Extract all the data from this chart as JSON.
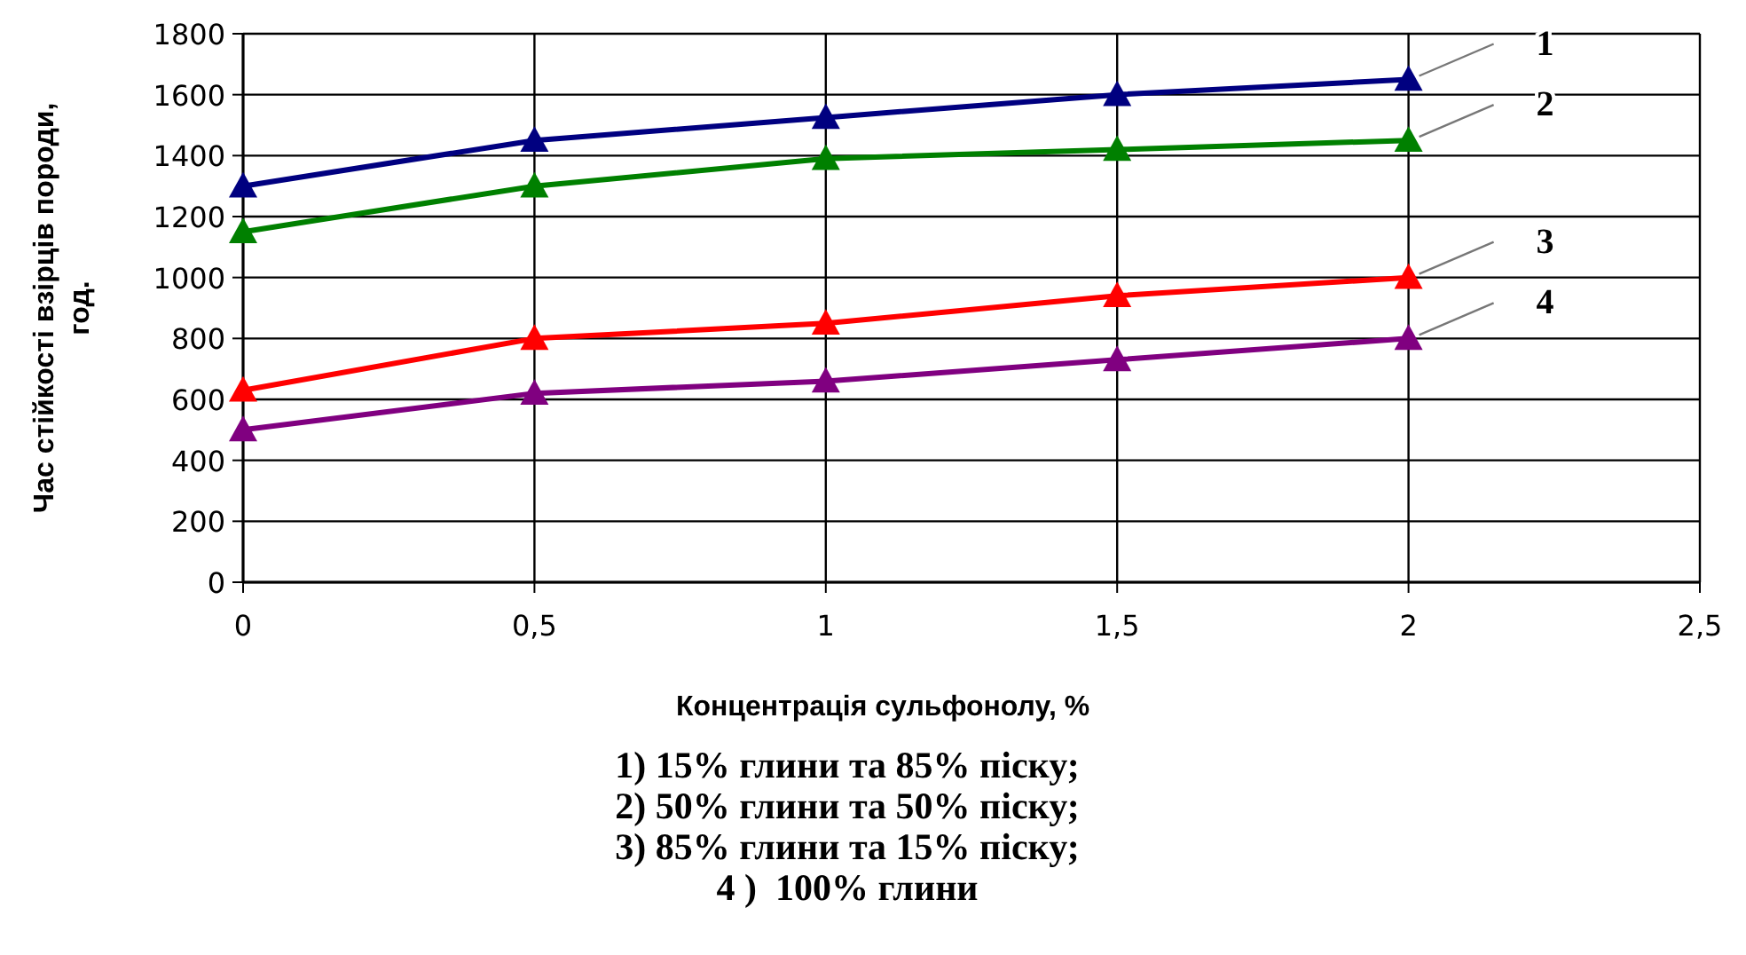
{
  "chart_data": {
    "type": "line",
    "xlabel": "Концентрація сульфонолу, %",
    "ylabel": "Час стійкості взірців породи, год.",
    "x": [
      0,
      0.5,
      1,
      1.5,
      2
    ],
    "xlim": [
      0,
      2.5
    ],
    "xticks": [
      {
        "value": 0,
        "label": "0"
      },
      {
        "value": 0.5,
        "label": "0,5"
      },
      {
        "value": 1,
        "label": "1"
      },
      {
        "value": 1.5,
        "label": "1,5"
      },
      {
        "value": 2,
        "label": "2"
      },
      {
        "value": 2.5,
        "label": "2,5"
      }
    ],
    "ylim": [
      0,
      1800
    ],
    "yticks": [
      0,
      200,
      400,
      600,
      800,
      1000,
      1200,
      1400,
      1600,
      1800
    ],
    "grid": true,
    "marker": "triangle",
    "series": [
      {
        "name": "1",
        "color": "#000080",
        "values": [
          1300,
          1450,
          1525,
          1600,
          1650
        ]
      },
      {
        "name": "2",
        "color": "#008000",
        "values": [
          1150,
          1300,
          1390,
          1420,
          1450
        ]
      },
      {
        "name": "3",
        "color": "#ff0000",
        "values": [
          630,
          800,
          850,
          940,
          1000
        ]
      },
      {
        "name": "4",
        "color": "#800080",
        "values": [
          500,
          620,
          660,
          730,
          800
        ]
      }
    ],
    "annotations": [
      "1) 15% глини та 85% піску;",
      "2) 50% глини та 50% піску;",
      "3) 85% глини та 15% піску;",
      "4 )  100% глини"
    ]
  }
}
